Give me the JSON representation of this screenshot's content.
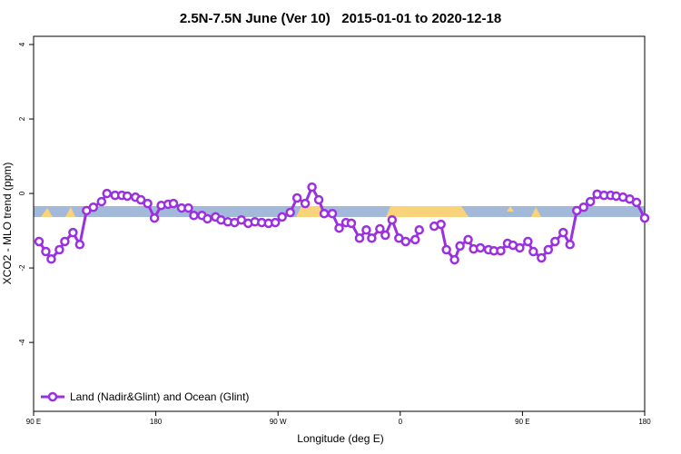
{
  "chart_data": {
    "type": "line",
    "title": "2.5N-7.5N June (Ver 10)   2015-01-01 to 2020-12-18",
    "x_label": "Longitude (deg E)",
    "y_label": "XCO2 - MLO trend (ppm)",
    "xlim": [
      90,
      540
    ],
    "ylim": [
      -5.85,
      4.22
    ],
    "xticks": [
      {
        "value": 90,
        "label": "90 E"
      },
      180,
      {
        "value": 270,
        "label": "90 W"
      },
      {
        "value": 360,
        "label": "0"
      },
      {
        "value": 450,
        "label": "90 E"
      },
      {
        "value": 540,
        "label": "180"
      }
    ],
    "yticks": [
      4,
      2,
      0,
      -2,
      -4
    ],
    "legend": "bottom-left",
    "series": [
      {
        "name": "Land (Nadir&Glint) and Ocean (Glint)",
        "color": "#9b30e0",
        "x": [
          94,
          99,
          103,
          109,
          113,
          119,
          124,
          129,
          134,
          140,
          144,
          150,
          155,
          159,
          165,
          169,
          174,
          179,
          184,
          189,
          193,
          199,
          204,
          208,
          214,
          218,
          224,
          228,
          233,
          238,
          243,
          248,
          253,
          258,
          263,
          268,
          273,
          279,
          284,
          290,
          295,
          300,
          304,
          310,
          315,
          320,
          324,
          330,
          335,
          339,
          345,
          349,
          354,
          359,
          364,
          371,
          374,
          380,
          385,
          390,
          394,
          400,
          404,
          410,
          414,
          419,
          425,
          429,
          434,
          439,
          443,
          448,
          454,
          458,
          464,
          469,
          474,
          480,
          485,
          490,
          495,
          500,
          505,
          510,
          515,
          519,
          524,
          529,
          534,
          540
        ],
        "values": [
          -1.29,
          -1.56,
          -1.76,
          -1.51,
          -1.29,
          -1.05,
          -1.37,
          -0.46,
          -0.37,
          -0.22,
          0,
          -0.05,
          -0.05,
          -0.07,
          -0.1,
          -0.17,
          -0.27,
          -0.66,
          -0.32,
          -0.29,
          -0.27,
          -0.39,
          -0.39,
          -0.59,
          -0.59,
          -0.68,
          -0.63,
          -0.71,
          -0.76,
          -0.78,
          -0.71,
          -0.8,
          -0.76,
          -0.78,
          -0.8,
          -0.78,
          -0.63,
          -0.51,
          -0.12,
          -0.27,
          0.17,
          -0.17,
          -0.54,
          -0.54,
          -0.93,
          -0.78,
          -0.8,
          -1.2,
          -0.98,
          -1.2,
          -0.95,
          -1.12,
          -0.71,
          -1.2,
          -1.29,
          -1.24,
          -0.98,
          null,
          -0.88,
          -0.83,
          -1.51,
          -1.78,
          -1.41,
          -1.24,
          -1.49,
          -1.46,
          -1.51,
          -1.54,
          -1.54,
          -1.34,
          -1.39,
          -1.46,
          -1.29,
          -1.56,
          -1.73,
          -1.51,
          -1.29,
          -1.05,
          -1.37,
          -0.46,
          -0.37,
          -0.22,
          -0.02,
          -0.05,
          -0.05,
          -0.07,
          -0.1,
          -0.15,
          -0.24,
          -0.66
        ]
      }
    ]
  }
}
